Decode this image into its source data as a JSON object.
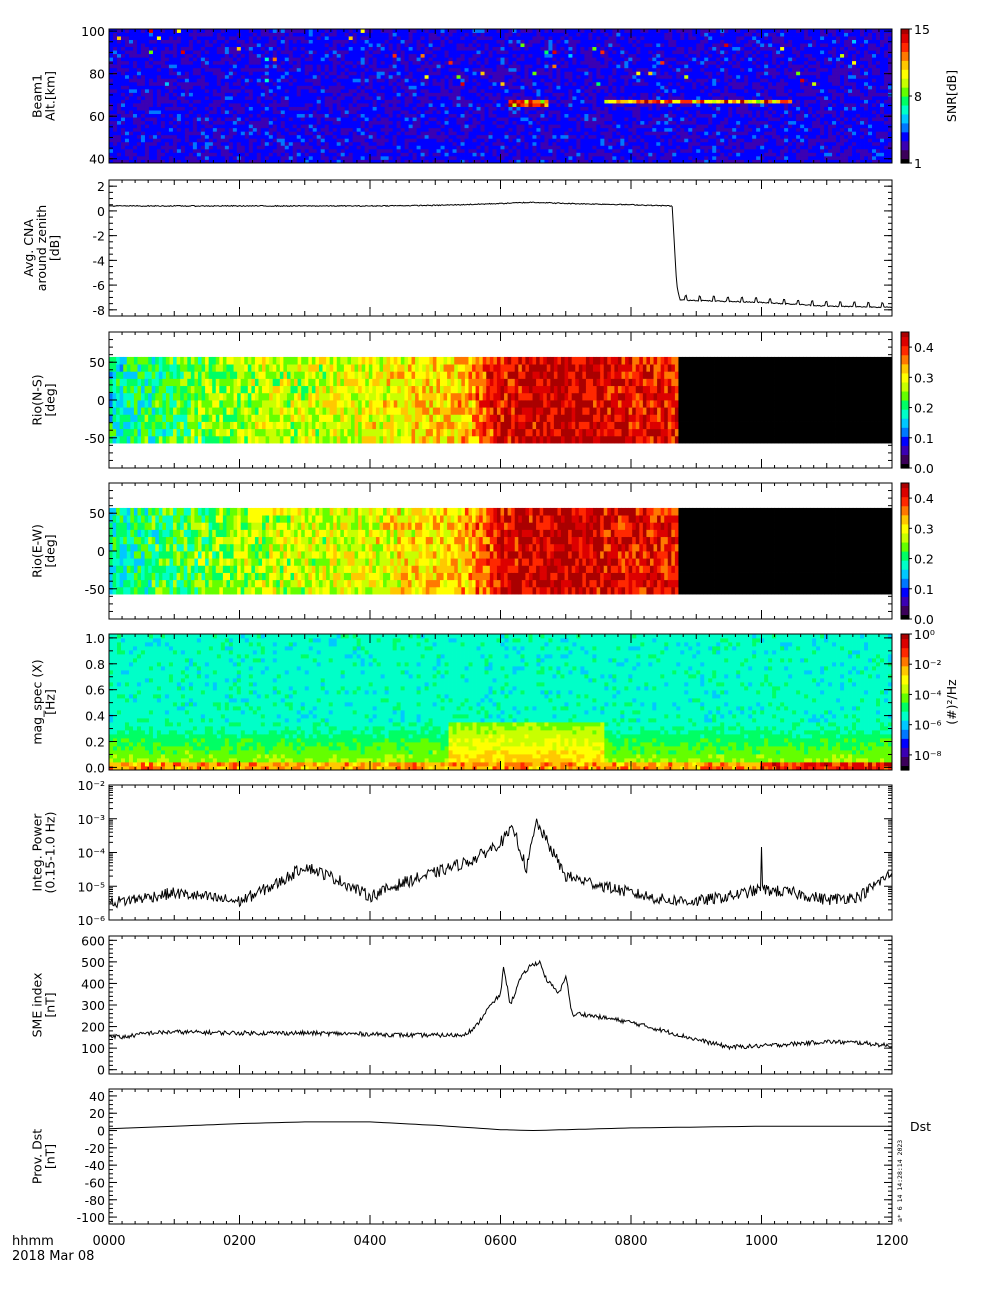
{
  "footer": {
    "unit_label": "hhmm",
    "date_label": "2018 Mar 08",
    "stamp": "a* 6 14 14:28:14 2023"
  },
  "x_axis": {
    "range": [
      0,
      1200
    ],
    "tick_labels": [
      "0000",
      "0200",
      "0400",
      "0600",
      "0800",
      "1000",
      "1200"
    ]
  },
  "colors": {
    "rainbow": [
      "#000000",
      "#3c005a",
      "#3b00b4",
      "#0000ff",
      "#0078ff",
      "#00c8ff",
      "#00ffc8",
      "#00ff64",
      "#64ff00",
      "#c8ff00",
      "#ffff00",
      "#ffc800",
      "#ff7800",
      "#ff2800",
      "#dc0000",
      "#aa0000"
    ],
    "line": "#000000"
  },
  "chart_data": [
    {
      "id": "beam1",
      "type": "heatmap",
      "ylabel": [
        "Beam1",
        "Alt.[km]"
      ],
      "ylim": [
        38,
        101
      ],
      "yticks": [
        40,
        60,
        80,
        100
      ],
      "colorbar": {
        "label": "SNR[dB]",
        "range": [
          1,
          15
        ],
        "ticks": [
          [
            "15",
            15
          ],
          [
            "8",
            8
          ],
          [
            "1",
            1
          ]
        ]
      },
      "background_level": 0.12,
      "bright_layers": [
        {
          "x_start": 615,
          "x_end": 672,
          "alt": 66,
          "peak": 15
        },
        {
          "x_start": 760,
          "x_end": 1045,
          "alt": 67,
          "peak": 15
        }
      ]
    },
    {
      "id": "cna",
      "type": "line",
      "ylabel": [
        "Avg. CNA",
        "around zenith",
        "[dB]"
      ],
      "ylim": [
        -8.5,
        2.5
      ],
      "yticks": [
        2,
        0,
        -2,
        -4,
        -6,
        -8
      ],
      "series": [
        {
          "x": [
            0,
            100,
            200,
            300,
            400,
            500,
            540,
            600,
            650,
            700,
            800,
            863,
            870,
            875,
            1000,
            1100,
            1200
          ],
          "values": [
            0.4,
            0.4,
            0.4,
            0.4,
            0.4,
            0.45,
            0.5,
            0.6,
            0.7,
            0.6,
            0.5,
            0.4,
            -6.0,
            -7.2,
            -7.4,
            -7.7,
            -7.8
          ]
        }
      ]
    },
    {
      "id": "rio-ns",
      "type": "heatmap",
      "ylabel": [
        "Rio(N-S)",
        "[deg]"
      ],
      "ylim": [
        -90,
        90
      ],
      "yticks": [
        50,
        0,
        -50
      ],
      "data_range_deg": [
        -57,
        57
      ],
      "colorbar": {
        "range": [
          0,
          0.45
        ],
        "ticks": [
          [
            "0.4",
            0.4
          ],
          [
            "0.3",
            0.3
          ],
          [
            "0.2",
            0.2
          ],
          [
            "0.1",
            0.1
          ],
          [
            "0.0",
            0.0
          ]
        ]
      },
      "time_profile": [
        {
          "x": 0,
          "level": 0.18
        },
        {
          "x": 100,
          "level": 0.22
        },
        {
          "x": 200,
          "level": 0.26
        },
        {
          "x": 400,
          "level": 0.29
        },
        {
          "x": 550,
          "level": 0.33
        },
        {
          "x": 600,
          "level": 0.42
        },
        {
          "x": 700,
          "level": 0.44
        },
        {
          "x": 865,
          "level": 0.4
        }
      ],
      "dark_after_x": 870
    },
    {
      "id": "rio-ew",
      "type": "heatmap",
      "ylabel": [
        "Rio(E-W)",
        "[deg]"
      ],
      "ylim": [
        -90,
        90
      ],
      "yticks": [
        50,
        0,
        -50
      ],
      "data_range_deg": [
        -57,
        57
      ],
      "colorbar": {
        "range": [
          0,
          0.45
        ],
        "ticks": [
          [
            "0.4",
            0.4
          ],
          [
            "0.3",
            0.3
          ],
          [
            "0.2",
            0.2
          ],
          [
            "0.1",
            0.1
          ],
          [
            "0.0",
            0.0
          ]
        ]
      },
      "time_profile": [
        {
          "x": 0,
          "level": 0.18
        },
        {
          "x": 100,
          "level": 0.22
        },
        {
          "x": 200,
          "level": 0.26
        },
        {
          "x": 400,
          "level": 0.29
        },
        {
          "x": 550,
          "level": 0.33
        },
        {
          "x": 600,
          "level": 0.42
        },
        {
          "x": 700,
          "level": 0.44
        },
        {
          "x": 865,
          "level": 0.4
        }
      ],
      "dark_after_x": 870
    },
    {
      "id": "mag-spec",
      "type": "heatmap",
      "ylabel": [
        "mag_spec (X)",
        "[Hz]"
      ],
      "ylim": [
        -0.02,
        1.03
      ],
      "yticks": [
        1.0,
        0.8,
        0.6,
        0.4,
        0.2,
        0.0
      ],
      "ytick_labels": [
        "1.0",
        "0.8",
        "0.6",
        "0.4",
        "0.2",
        "0.0"
      ],
      "colorbar": {
        "label": "(#)²/Hz",
        "range_log10": [
          -9,
          0
        ],
        "ticks": [
          [
            "10⁰",
            0
          ],
          [
            "10⁻²",
            -2
          ],
          [
            "10⁻⁴",
            -4
          ],
          [
            "10⁻⁶",
            -6
          ],
          [
            "10⁻⁸",
            -8
          ]
        ]
      }
    },
    {
      "id": "integ-power",
      "type": "line",
      "ylabel": [
        "Integ. Power",
        "(0.15-1.0 Hz)"
      ],
      "y_log": true,
      "ylim_log10": [
        -6,
        -2
      ],
      "yticks": [
        [
          "10⁻²",
          -2
        ],
        [
          "10⁻³",
          -3
        ],
        [
          "10⁻⁴",
          -4
        ],
        [
          "10⁻⁵",
          -5
        ],
        [
          "10⁻⁶",
          -6
        ]
      ],
      "series": [
        {
          "x": [
            0,
            100,
            200,
            260,
            300,
            350,
            400,
            450,
            500,
            560,
            600,
            620,
            640,
            655,
            700,
            760,
            800,
            850,
            900,
            950,
            999,
            1000,
            1001,
            1050,
            1100,
            1150,
            1200
          ],
          "values_log10": [
            -5.5,
            -5.2,
            -5.45,
            -4.9,
            -4.4,
            -4.8,
            -5.3,
            -4.9,
            -4.6,
            -4.2,
            -3.7,
            -3.3,
            -4.5,
            -3.1,
            -4.7,
            -5.0,
            -5.2,
            -5.4,
            -5.45,
            -5.3,
            -5.1,
            -3.7,
            -5.1,
            -5.2,
            -5.4,
            -5.3,
            -4.6
          ]
        }
      ]
    },
    {
      "id": "sme",
      "type": "line",
      "ylabel": [
        "SME index",
        "[nT]"
      ],
      "ylim": [
        -20,
        620
      ],
      "yticks": [
        600,
        500,
        400,
        300,
        200,
        100,
        0
      ],
      "series": [
        {
          "x": [
            0,
            20,
            60,
            100,
            200,
            300,
            400,
            460,
            540,
            560,
            580,
            600,
            605,
            615,
            630,
            645,
            660,
            670,
            690,
            700,
            710,
            720,
            760,
            800,
            850,
            900,
            950,
            1000,
            1050,
            1100,
            1150,
            1200
          ],
          "values": [
            160,
            150,
            170,
            175,
            170,
            170,
            165,
            160,
            160,
            190,
            280,
            350,
            480,
            300,
            420,
            480,
            500,
            420,
            350,
            440,
            250,
            260,
            240,
            220,
            180,
            140,
            105,
            110,
            120,
            130,
            125,
            110
          ]
        }
      ]
    },
    {
      "id": "dst",
      "type": "line",
      "ylabel": [
        "Prov. Dst",
        "[nT]"
      ],
      "series_label": "Dst",
      "ylim": [
        -108,
        48
      ],
      "yticks": [
        40,
        20,
        0,
        -20,
        -40,
        -60,
        -80,
        -100
      ],
      "series": [
        {
          "x": [
            0,
            100,
            200,
            300,
            400,
            500,
            560,
            600,
            650,
            700,
            800,
            900,
            1000,
            1100,
            1200
          ],
          "values": [
            2,
            5,
            8,
            10,
            10,
            6,
            3,
            1,
            0,
            1,
            3,
            4,
            5,
            5,
            5
          ]
        }
      ]
    }
  ]
}
